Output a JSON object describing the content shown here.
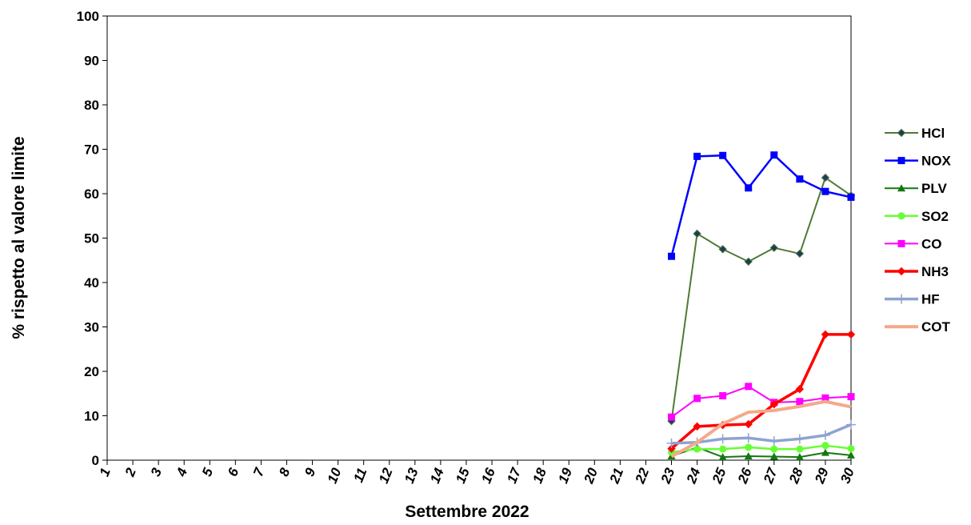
{
  "chart_data": {
    "type": "line",
    "title": "",
    "xlabel": "Settembre 2022",
    "ylabel": "% rispetto al valore limite",
    "ylim": [
      0,
      100
    ],
    "yticks": [
      0,
      10,
      20,
      30,
      40,
      50,
      60,
      70,
      80,
      90,
      100
    ],
    "categories": [
      "1",
      "2",
      "3",
      "4",
      "5",
      "6",
      "7",
      "8",
      "9",
      "10",
      "11",
      "12",
      "13",
      "14",
      "15",
      "16",
      "17",
      "18",
      "19",
      "20",
      "21",
      "22",
      "23",
      "24",
      "25",
      "26",
      "27",
      "28",
      "29",
      "30"
    ],
    "grid": false,
    "legend_position": "right",
    "series": [
      {
        "name": "HCl",
        "color": "#4f7a35",
        "marker": "diamond",
        "width": 2,
        "values": [
          null,
          null,
          null,
          null,
          null,
          null,
          null,
          null,
          null,
          null,
          null,
          null,
          null,
          null,
          null,
          null,
          null,
          null,
          null,
          null,
          null,
          null,
          8.8,
          51.0,
          47.5,
          44.7,
          47.8,
          46.5,
          63.6,
          59.6
        ]
      },
      {
        "name": "NOX",
        "color": "#0000ff",
        "marker": "square",
        "width": 2.5,
        "values": [
          null,
          null,
          null,
          null,
          null,
          null,
          null,
          null,
          null,
          null,
          null,
          null,
          null,
          null,
          null,
          null,
          null,
          null,
          null,
          null,
          null,
          null,
          45.9,
          68.4,
          68.6,
          61.3,
          68.7,
          63.3,
          60.5,
          59.2
        ]
      },
      {
        "name": "PLV",
        "color": "#127812",
        "marker": "triangle",
        "width": 2,
        "values": [
          null,
          null,
          null,
          null,
          null,
          null,
          null,
          null,
          null,
          null,
          null,
          null,
          null,
          null,
          null,
          null,
          null,
          null,
          null,
          null,
          null,
          null,
          0.9,
          2.9,
          0.7,
          0.9,
          0.8,
          0.7,
          1.7,
          1.1
        ]
      },
      {
        "name": "SO2",
        "color": "#66ff33",
        "marker": "circle",
        "width": 2.5,
        "values": [
          null,
          null,
          null,
          null,
          null,
          null,
          null,
          null,
          null,
          null,
          null,
          null,
          null,
          null,
          null,
          null,
          null,
          null,
          null,
          null,
          null,
          null,
          1.8,
          2.5,
          2.5,
          2.9,
          2.5,
          2.5,
          3.3,
          2.6
        ]
      },
      {
        "name": "CO",
        "color": "#ff00ff",
        "marker": "square",
        "width": 2,
        "values": [
          null,
          null,
          null,
          null,
          null,
          null,
          null,
          null,
          null,
          null,
          null,
          null,
          null,
          null,
          null,
          null,
          null,
          null,
          null,
          null,
          null,
          null,
          9.7,
          13.9,
          14.5,
          16.6,
          13.0,
          13.2,
          14.0,
          14.3
        ]
      },
      {
        "name": "NH3",
        "color": "#ff0000",
        "marker": "diamond",
        "width": 3.5,
        "values": [
          null,
          null,
          null,
          null,
          null,
          null,
          null,
          null,
          null,
          null,
          null,
          null,
          null,
          null,
          null,
          null,
          null,
          null,
          null,
          null,
          null,
          null,
          2.6,
          7.6,
          7.9,
          8.1,
          12.6,
          16.0,
          28.3,
          28.3
        ]
      },
      {
        "name": "HF",
        "color": "#8fa3d0",
        "marker": "plus",
        "width": 3.5,
        "values": [
          null,
          null,
          null,
          null,
          null,
          null,
          null,
          null,
          null,
          null,
          null,
          null,
          null,
          null,
          null,
          null,
          null,
          null,
          null,
          null,
          null,
          null,
          3.8,
          4.0,
          4.8,
          5.0,
          4.3,
          4.8,
          5.6,
          8.0
        ]
      },
      {
        "name": "COT",
        "color": "#f4a98a",
        "marker": "none",
        "width": 4,
        "values": [
          null,
          null,
          null,
          null,
          null,
          null,
          null,
          null,
          null,
          null,
          null,
          null,
          null,
          null,
          null,
          null,
          null,
          null,
          null,
          null,
          null,
          null,
          0.8,
          4.0,
          8.2,
          10.8,
          11.2,
          12.1,
          13.2,
          12.0
        ]
      }
    ]
  }
}
